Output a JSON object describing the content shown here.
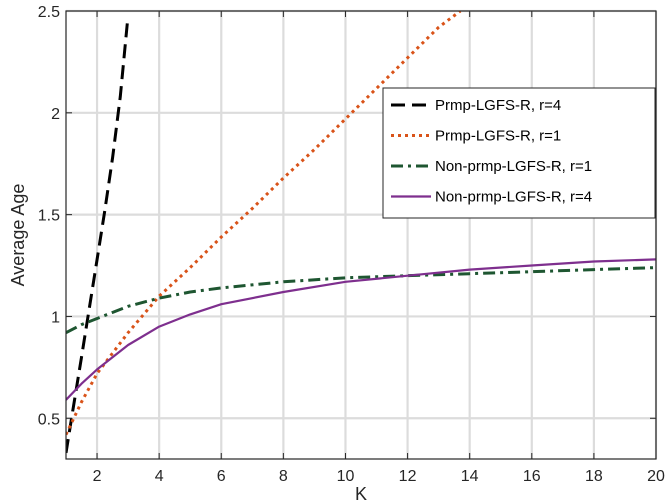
{
  "chart_data": {
    "type": "line",
    "xlabel": "K",
    "ylabel": "Average Age",
    "xlim": [
      1,
      20
    ],
    "ylim": [
      0.3,
      2.5
    ],
    "xticks": [
      2,
      4,
      6,
      8,
      10,
      12,
      14,
      16,
      18,
      20
    ],
    "yticks": [
      0.5,
      1,
      1.5,
      2,
      2.5
    ],
    "xtick_labels": [
      "2",
      "4",
      "6",
      "8",
      "10",
      "12",
      "14",
      "16",
      "18",
      "20"
    ],
    "ytick_labels": [
      "0.5",
      "1",
      "1.5",
      "2",
      "2.5"
    ],
    "grid": true,
    "legend_position": "top-right",
    "series": [
      {
        "name": "Prmp-LGFS-R, r=4",
        "color": "#000000",
        "style": "dashed",
        "x": [
          1.0,
          1.2,
          1.5,
          1.75,
          2.0,
          2.25,
          2.5,
          2.75,
          2.98
        ],
        "y": [
          0.33,
          0.52,
          0.8,
          1.04,
          1.28,
          1.52,
          1.78,
          2.08,
          2.45
        ]
      },
      {
        "name": "Prmp-LGFS-R, r=1",
        "color": "#D95319",
        "style": "dotted",
        "x": [
          1.0,
          1.5,
          2.0,
          3.0,
          4.0,
          5.0,
          6.0,
          7.0,
          8.0,
          9.0,
          10.0,
          11.0,
          12.0,
          13.0,
          13.7
        ],
        "y": [
          0.42,
          0.58,
          0.72,
          0.92,
          1.1,
          1.24,
          1.39,
          1.53,
          1.68,
          1.82,
          1.97,
          2.12,
          2.27,
          2.42,
          2.5
        ]
      },
      {
        "name": "Non-prmp-LGFS-R, r=1",
        "color": "#1E5631",
        "style": "dashdot",
        "x": [
          1.0,
          1.5,
          2.0,
          3.0,
          4.0,
          5.0,
          6.0,
          8.0,
          10.0,
          12.0,
          14.0,
          16.0,
          18.0,
          20.0
        ],
        "y": [
          0.92,
          0.96,
          0.99,
          1.05,
          1.09,
          1.12,
          1.14,
          1.17,
          1.19,
          1.2,
          1.21,
          1.22,
          1.23,
          1.24
        ]
      },
      {
        "name": "Non-prmp-LGFS-R, r=4",
        "color": "#7E2F8E",
        "style": "solid",
        "x": [
          1.0,
          1.5,
          2.0,
          3.0,
          4.0,
          5.0,
          6.0,
          8.0,
          10.0,
          12.0,
          14.0,
          16.0,
          18.0,
          20.0
        ],
        "y": [
          0.59,
          0.67,
          0.74,
          0.86,
          0.95,
          1.01,
          1.06,
          1.12,
          1.17,
          1.2,
          1.23,
          1.25,
          1.27,
          1.28
        ]
      }
    ]
  }
}
